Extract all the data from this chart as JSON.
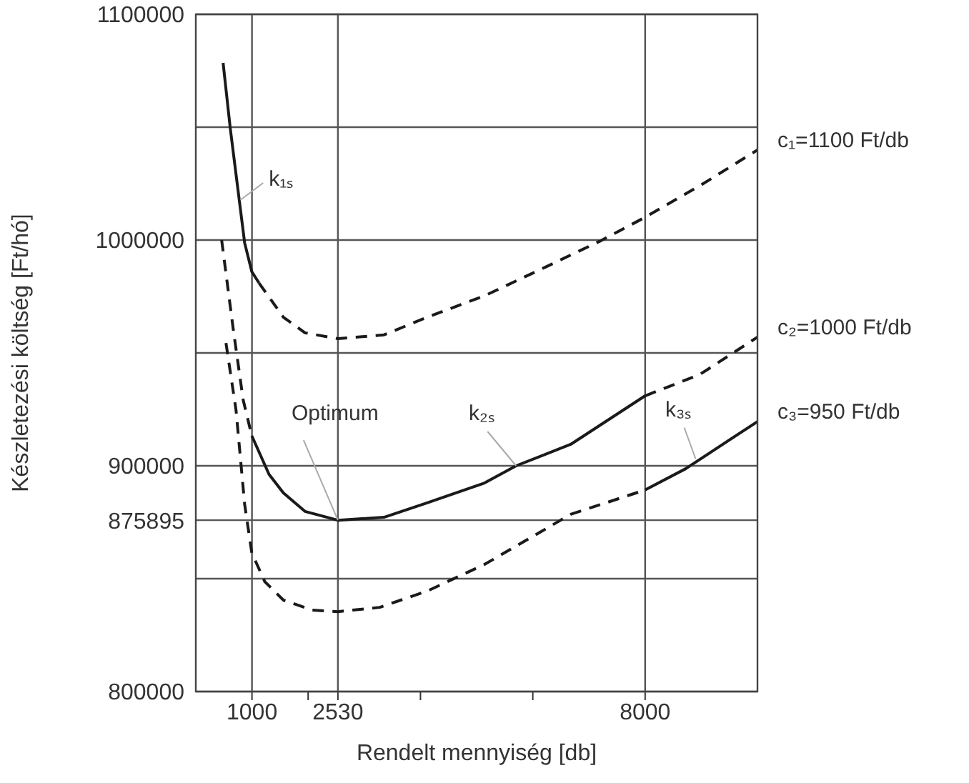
{
  "chart_data": {
    "type": "line",
    "xlabel": "Rendelt mennyiség [db]",
    "ylabel": "Készletezési költség [Ft/hó]",
    "marker": "none",
    "grid": true,
    "xlim": [
      0,
      10000
    ],
    "xticks": [
      1000,
      {
        "value": 2000,
        "label": null
      },
      2530,
      {
        "value": 4000,
        "label": null
      },
      {
        "value": 6000,
        "label": null
      },
      8000
    ],
    "ylim": [
      800000,
      1100000
    ],
    "yticks": [
      800000,
      {
        "value": 850000,
        "label": null
      },
      875895,
      900000,
      {
        "value": 950000,
        "label": null
      },
      1000000,
      {
        "value": 1050000,
        "label": null
      },
      1100000
    ],
    "series": [
      {
        "color": "#1a1a1a",
        "line_style": "solid",
        "x": [
          486,
          614,
          742,
          870,
          997,
          1125
        ],
        "values": [
          1078500,
          1049400,
          1024000,
          998700,
          986000,
          981000
        ]
      },
      {
        "name": "c₁=1100 Ft/db",
        "color": "#1a1a1a",
        "line_style": "dashed",
        "x": [
          1125,
          1560,
          1944,
          2530,
          3350,
          4118,
          5140,
          6164,
          7187,
          8000,
          8977,
          10000
        ],
        "values": [
          981000,
          965800,
          958900,
          956300,
          958000,
          965800,
          975300,
          987300,
          999400,
          1010100,
          1024100,
          1039900
        ]
      },
      {
        "color": "#1a1a1a",
        "line_style": "dashed",
        "x": [
          460,
          665,
          844,
          997
        ],
        "values": [
          1000000,
          960800,
          929100,
          913300
        ]
      },
      {
        "color": "#1a1a1a",
        "line_style": "solid",
        "x": [
          997,
          1304,
          1560,
          1944,
          2530,
          3350,
          4118,
          5140,
          5703,
          6675,
          8000
        ],
        "values": [
          913300,
          896200,
          888000,
          879800,
          875895,
          877200,
          883600,
          892400,
          900000,
          909500,
          931000
        ]
      },
      {
        "name": "c₂=1000 Ft/db",
        "color": "#1a1a1a",
        "line_style": "dashed",
        "x": [
          8000,
          8977,
          10000
        ],
        "values": [
          931000,
          940500,
          957000
        ]
      },
      {
        "color": "#1a1a1a",
        "line_style": "dashed",
        "x": [
          537,
          716,
          870,
          997,
          1228,
          1560,
          2072,
          2530,
          3274,
          4118,
          5140,
          6675,
          8000
        ],
        "values": [
          954400,
          924700,
          882900,
          861400,
          848700,
          840500,
          836100,
          835400,
          837300,
          844500,
          856300,
          878500,
          889300
        ]
      },
      {
        "name": "c₃=950 Ft/db",
        "color": "#1a1a1a",
        "line_style": "solid",
        "x": [
          8000,
          8721,
          10000
        ],
        "values": [
          889300,
          898700,
          919600
        ]
      }
    ],
    "annotations": [
      {
        "text": "k₁ₛ",
        "x": 793,
        "y": 1017700
      },
      {
        "text": "Optimum",
        "x": 2530,
        "y": 875895
      },
      {
        "text": "k₂ₛ",
        "x": 5703,
        "y": 900000
      },
      {
        "text": "k₃ₛ",
        "x": 8900,
        "y": 903000
      }
    ]
  }
}
